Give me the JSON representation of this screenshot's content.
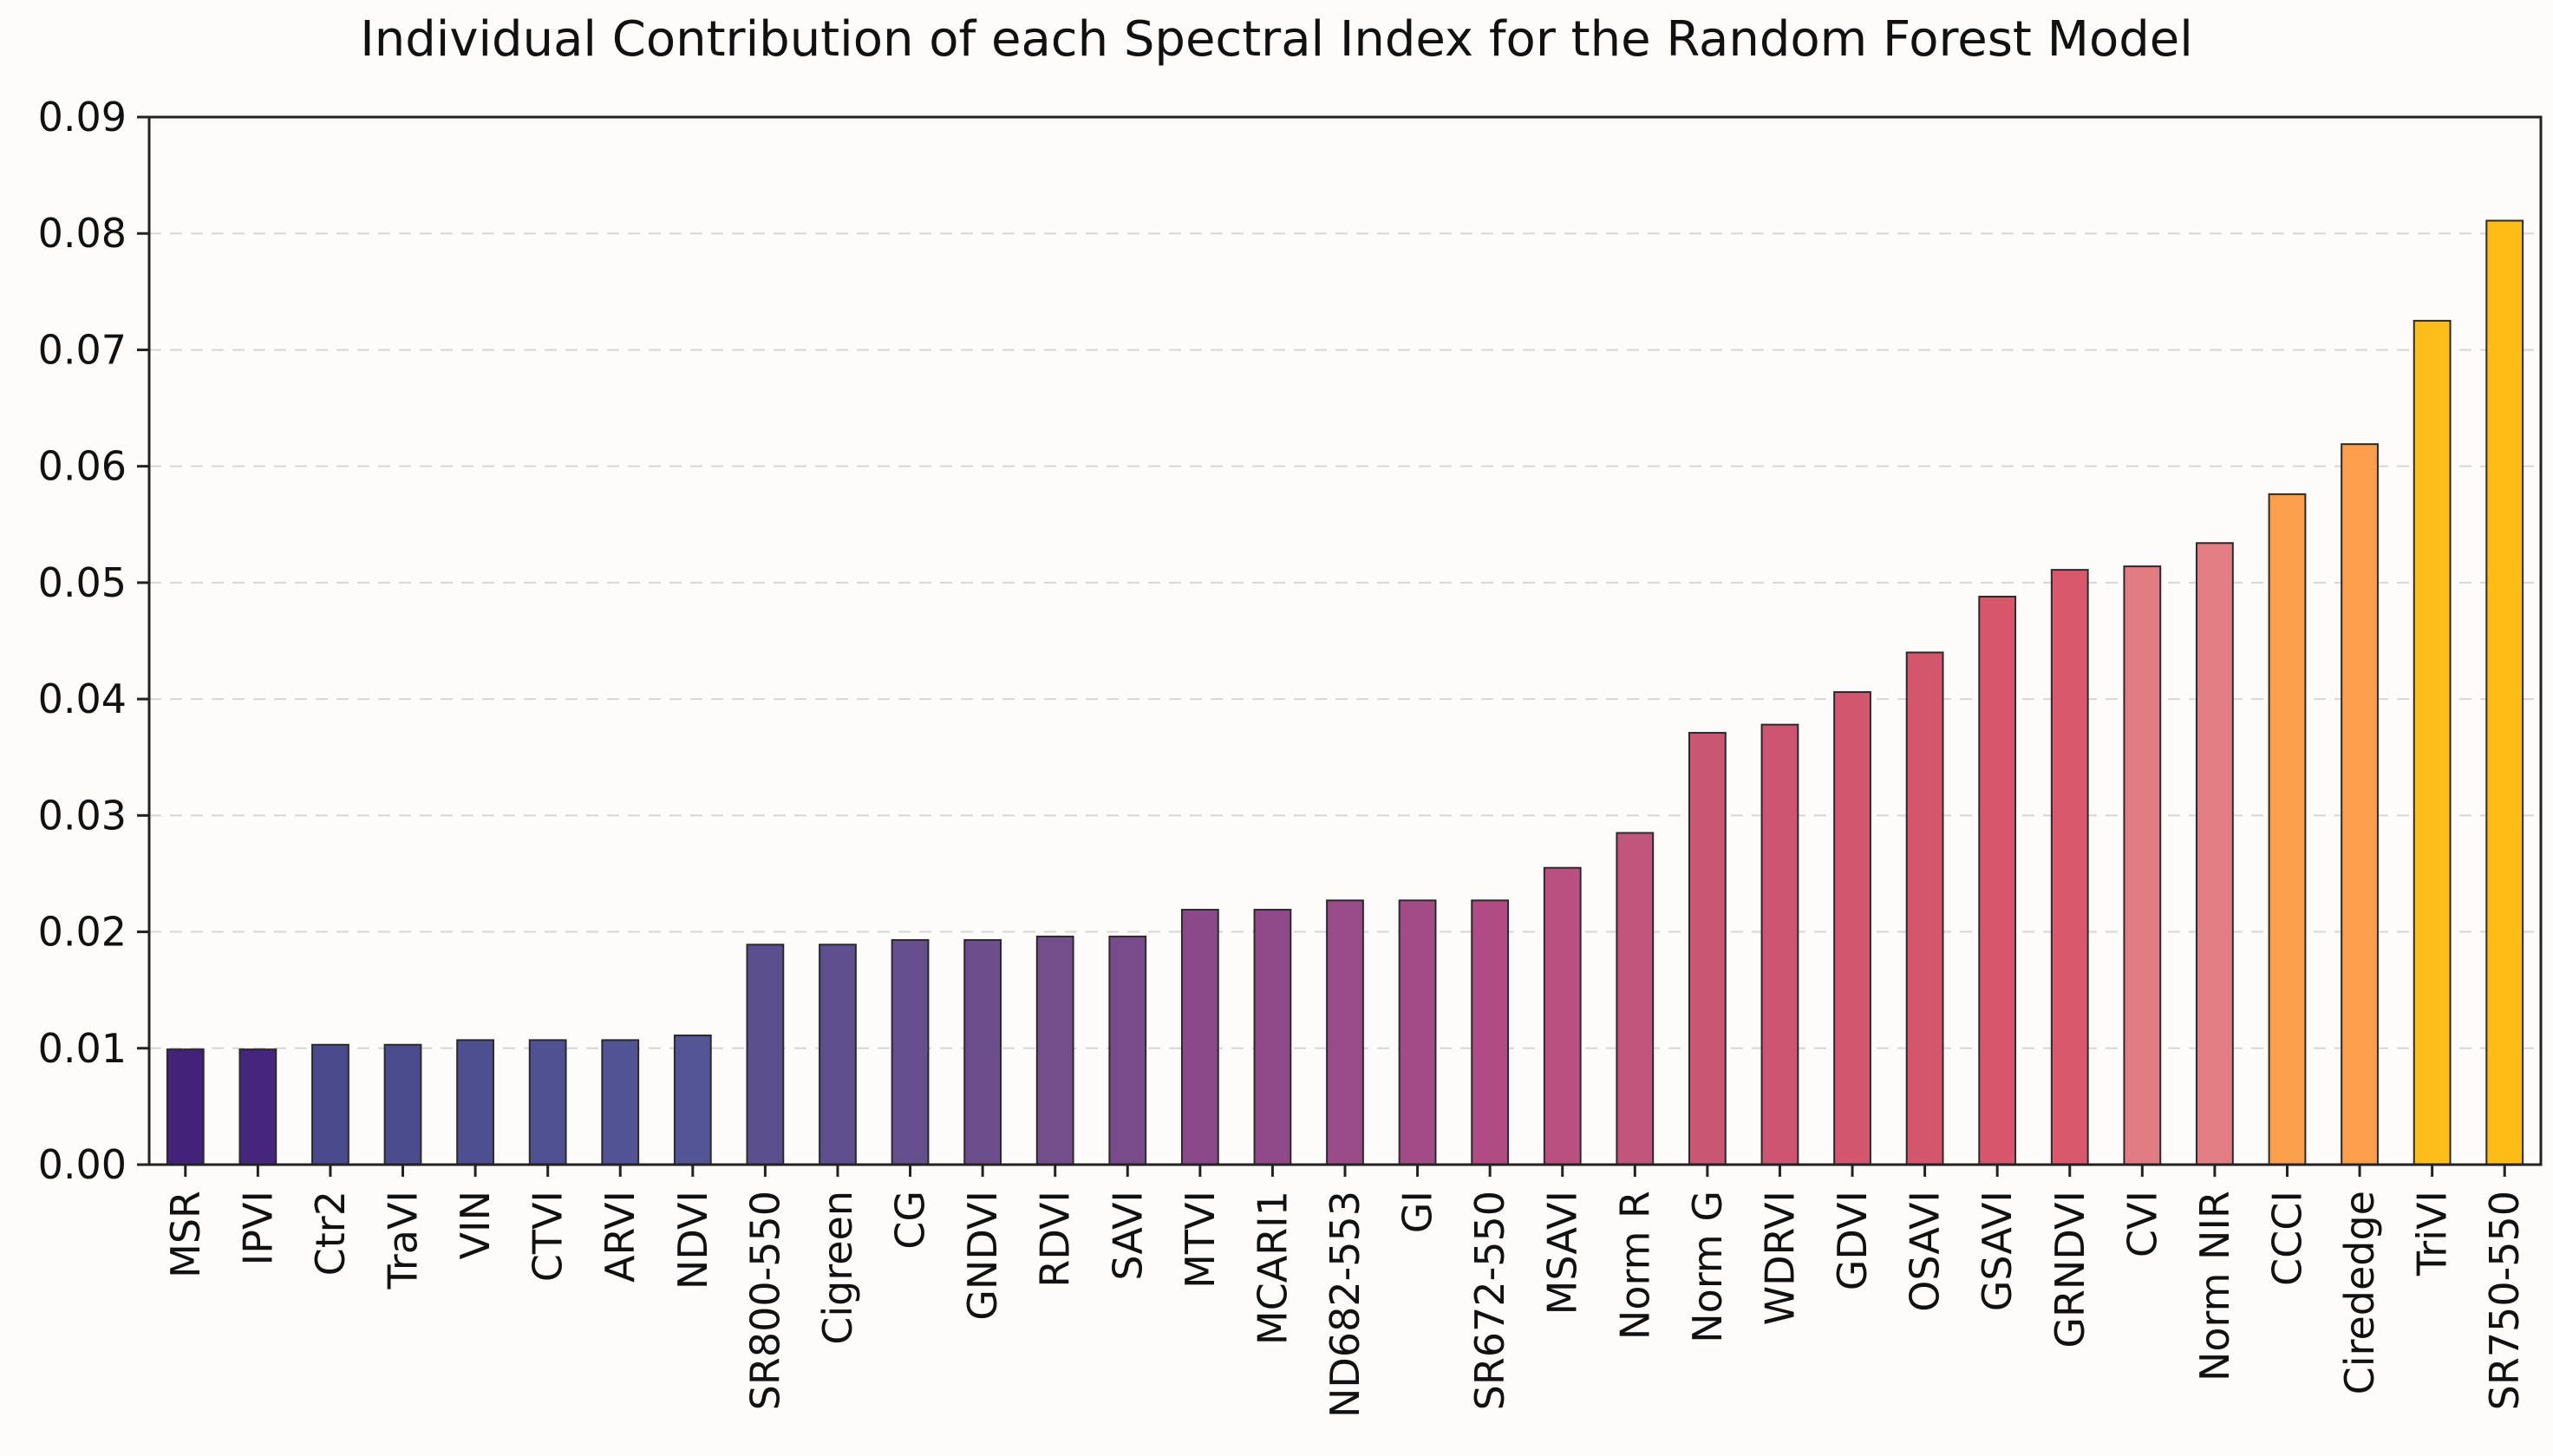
{
  "chart_data": {
    "type": "bar",
    "title": "Individual Contribution of each Spectral Index for the Random Forest Model",
    "xlabel": "",
    "ylabel": "",
    "ylim": [
      0,
      0.09
    ],
    "yticks": [
      "0.00",
      "0.01",
      "0.02",
      "0.03",
      "0.04",
      "0.05",
      "0.06",
      "0.07",
      "0.08",
      "0.09"
    ],
    "grid": "horizontal dashed",
    "categories": [
      "MSR",
      "IPVI",
      "Ctr2",
      "TraVI",
      "VIN",
      "CTVI",
      "ARVI",
      "NDVI",
      "SR800-550",
      "Cigreen",
      "CG",
      "GNDVI",
      "RDVI",
      "SAVI",
      "MTVI",
      "MCARI1",
      "ND682-553",
      "GI",
      "SR672-550",
      "MSAVI",
      "Norm R",
      "Norm G",
      "WDRVI",
      "GDVI",
      "OSAVI",
      "GSAVI",
      "GRNDVI",
      "CVI",
      "Norm NIR",
      "CCCI",
      "Cirededge",
      "TriVI",
      "SR750-550"
    ],
    "values": [
      0.0099,
      0.0099,
      0.0103,
      0.0103,
      0.0107,
      0.0107,
      0.0107,
      0.0111,
      0.0189,
      0.0189,
      0.0193,
      0.0193,
      0.0196,
      0.0196,
      0.0219,
      0.0219,
      0.0227,
      0.0227,
      0.0227,
      0.0255,
      0.0285,
      0.0371,
      0.0378,
      0.0406,
      0.044,
      0.0488,
      0.0511,
      0.0514,
      0.0534,
      0.0576,
      0.0619,
      0.0725,
      0.0811
    ],
    "colors": [
      "#43237a",
      "#46257c",
      "#4a4a8c",
      "#4b4c8e",
      "#4e4f91",
      "#505192",
      "#515393",
      "#535594",
      "#5c4f8e",
      "#5e4f8e",
      "#654f8c",
      "#6b4e8b",
      "#744d8b",
      "#7a4b8a",
      "#8a4a8a",
      "#904989",
      "#994a89",
      "#a34b87",
      "#b04c83",
      "#b95080",
      "#c2557b",
      "#c95672",
      "#cc5571",
      "#d1566e",
      "#d4566d",
      "#d6576c",
      "#d9586b",
      "#e07c82",
      "#e27e84",
      "#fb9f4c",
      "#fc9e4a",
      "#fdbd1a",
      "#fdbd16"
    ]
  }
}
